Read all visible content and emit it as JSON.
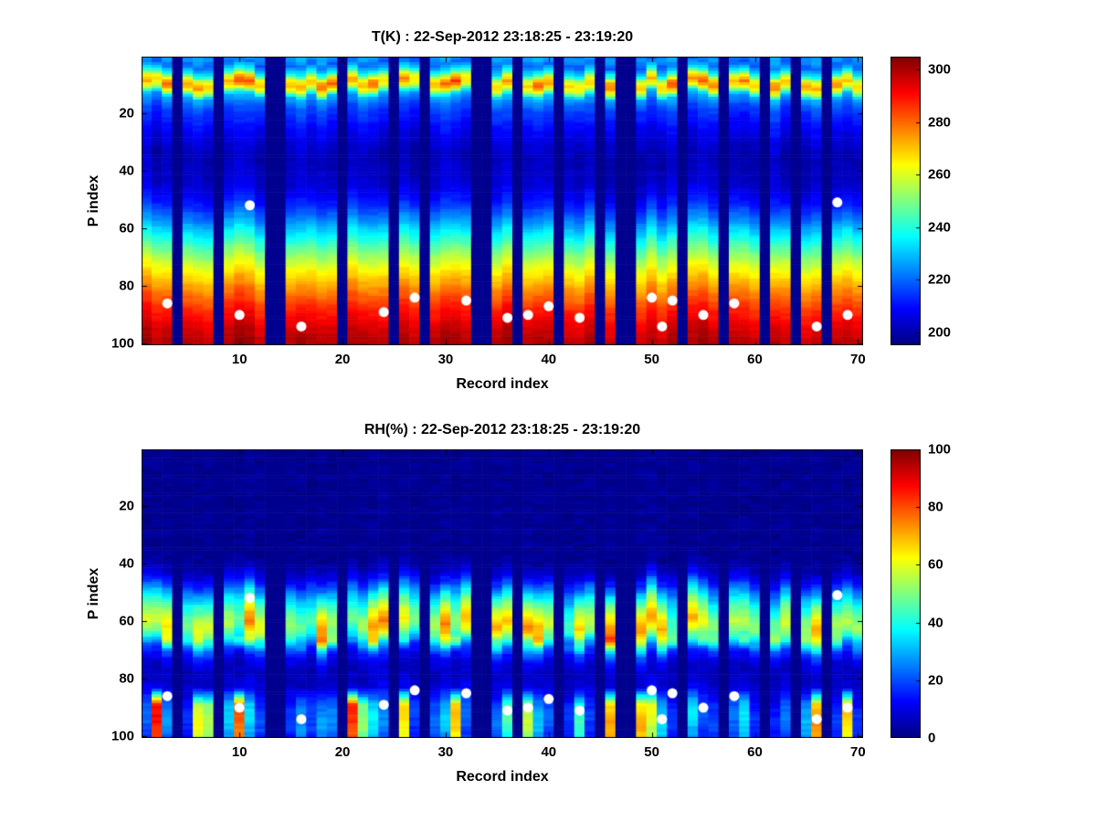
{
  "figure": {
    "background": "#ffffff",
    "marker_color": "#ffffff",
    "missing_color": "#00008f"
  },
  "chart_data": [
    {
      "id": "temperature",
      "type": "heatmap",
      "title": "T(K) : 22-Sep-2012 23:18:25 - 23:19:20",
      "xlabel": "Record index",
      "ylabel": "P index",
      "x_range": [
        1,
        70
      ],
      "y_range": [
        1,
        100
      ],
      "y_reversed": true,
      "x_ticks": [
        10,
        20,
        30,
        40,
        50,
        60,
        70
      ],
      "y_ticks": [
        20,
        40,
        60,
        80,
        100
      ],
      "clim": [
        195,
        305
      ],
      "colorbar_ticks": [
        200,
        220,
        240,
        260,
        280,
        300
      ],
      "colormap": "jet",
      "units": "K",
      "missing_records": [
        4,
        8,
        13,
        14,
        20,
        25,
        28,
        33,
        34,
        37,
        41,
        45,
        47,
        48,
        53,
        57,
        61,
        64,
        67
      ],
      "profile": [
        [
          1,
          226
        ],
        [
          3,
          219
        ],
        [
          6,
          236
        ],
        [
          8,
          263
        ],
        [
          10,
          273
        ],
        [
          12,
          258
        ],
        [
          14,
          228
        ],
        [
          18,
          217
        ],
        [
          22,
          212
        ],
        [
          28,
          206
        ],
        [
          35,
          201
        ],
        [
          45,
          204
        ],
        [
          52,
          213
        ],
        [
          58,
          226
        ],
        [
          63,
          238
        ],
        [
          68,
          250
        ],
        [
          73,
          261
        ],
        [
          78,
          271
        ],
        [
          83,
          280
        ],
        [
          88,
          288
        ],
        [
          93,
          294
        ],
        [
          97,
          298
        ],
        [
          100,
          300
        ]
      ],
      "texture": {
        "p_shift": 4,
        "col_amp": 6,
        "cell_noise": 3,
        "band_center": 9.5,
        "band_sigma": 3,
        "band_amp": 18
      },
      "markers": [
        [
          3,
          86
        ],
        [
          10,
          90
        ],
        [
          11,
          52
        ],
        [
          16,
          94
        ],
        [
          24,
          89
        ],
        [
          27,
          84
        ],
        [
          32,
          85
        ],
        [
          36,
          91
        ],
        [
          38,
          90
        ],
        [
          40,
          87
        ],
        [
          43,
          91
        ],
        [
          50,
          84
        ],
        [
          51,
          94
        ],
        [
          52,
          85
        ],
        [
          55,
          90
        ],
        [
          58,
          86
        ],
        [
          66,
          94
        ],
        [
          68,
          51
        ],
        [
          69,
          90
        ]
      ]
    },
    {
      "id": "humidity",
      "type": "heatmap",
      "title": "RH(%) : 22-Sep-2012 23:18:25 - 23:19:20",
      "xlabel": "Record index",
      "ylabel": "P index",
      "x_range": [
        1,
        70
      ],
      "y_range": [
        1,
        100
      ],
      "y_reversed": true,
      "x_ticks": [
        10,
        20,
        30,
        40,
        50,
        60,
        70
      ],
      "y_ticks": [
        20,
        40,
        60,
        80,
        100
      ],
      "clim": [
        0,
        100
      ],
      "colorbar_ticks": [
        0,
        20,
        40,
        60,
        80,
        100
      ],
      "colormap": "jet",
      "units": "%",
      "missing_records": [
        4,
        8,
        13,
        14,
        20,
        25,
        28,
        33,
        34,
        37,
        41,
        45,
        47,
        48,
        53,
        57,
        61,
        64,
        67
      ],
      "profile": [
        [
          1,
          2
        ],
        [
          38,
          2
        ],
        [
          42,
          6
        ],
        [
          46,
          15
        ],
        [
          50,
          32
        ],
        [
          54,
          48
        ],
        [
          58,
          60
        ],
        [
          61,
          66
        ],
        [
          64,
          58
        ],
        [
          67,
          42
        ],
        [
          70,
          22
        ],
        [
          73,
          12
        ],
        [
          77,
          7
        ],
        [
          81,
          8
        ],
        [
          85,
          12
        ],
        [
          89,
          18
        ],
        [
          93,
          22
        ],
        [
          97,
          20
        ],
        [
          100,
          16
        ]
      ],
      "texture": {
        "p_shift": 5,
        "col_scale_min": 0.65,
        "col_scale_range": 0.55,
        "cell_noise": 4,
        "band_center": 67,
        "band_sigma": 2,
        "band_amp": 30,
        "bottom_start": 83,
        "bottom_amp": 70
      },
      "markers": [
        [
          3,
          86
        ],
        [
          10,
          90
        ],
        [
          11,
          52
        ],
        [
          16,
          94
        ],
        [
          24,
          89
        ],
        [
          27,
          84
        ],
        [
          32,
          85
        ],
        [
          36,
          91
        ],
        [
          38,
          90
        ],
        [
          40,
          87
        ],
        [
          43,
          91
        ],
        [
          50,
          84
        ],
        [
          51,
          94
        ],
        [
          52,
          85
        ],
        [
          55,
          90
        ],
        [
          58,
          86
        ],
        [
          66,
          94
        ],
        [
          68,
          51
        ],
        [
          69,
          90
        ]
      ]
    }
  ]
}
